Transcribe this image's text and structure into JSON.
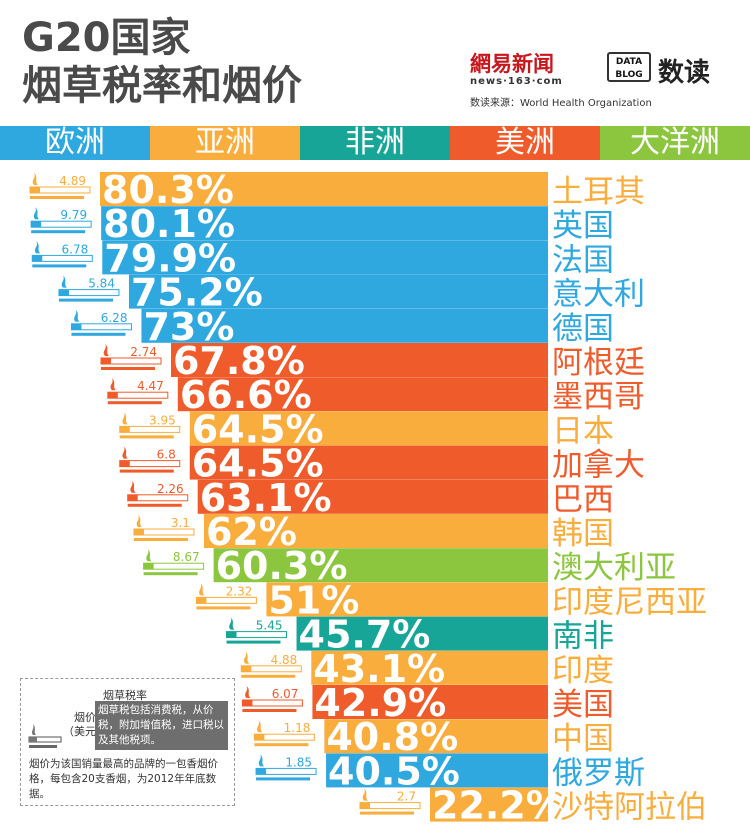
{
  "title_line1": "G20国家",
  "title_line2": "烟草税率和烟价",
  "brand": {
    "name": "網易新闻",
    "url": "news·163·com",
    "source": "数读来源：World Health Organization"
  },
  "datablog": {
    "line1": "DATA",
    "line2": "BLOG",
    "name": "数读"
  },
  "colors": {
    "europe": "#2ea8df",
    "asia": "#f9ad3c",
    "africa": "#17a597",
    "americas": "#ef5b2b",
    "oceania": "#8cc63e"
  },
  "legend": [
    {
      "label": "欧洲",
      "key": "europe"
    },
    {
      "label": "亚洲",
      "key": "asia"
    },
    {
      "label": "非洲",
      "key": "africa"
    },
    {
      "label": "美洲",
      "key": "americas"
    },
    {
      "label": "大洋洲",
      "key": "oceania"
    }
  ],
  "note": {
    "price_label_1": "烟价",
    "price_label_2": "（美元）",
    "tax_title": "烟草税率",
    "tax_desc": "烟草税包括消费税，从价税，附加增值税，进口税以及其他税项。",
    "price_desc": "烟价为该国销量最高的品牌的一包香烟价格，每包含20支香烟，为2012年年底数据。"
  },
  "chart_data": {
    "type": "bar",
    "title": "G20国家烟草税率和烟价",
    "ylabel": "烟草税率 (%)",
    "xlabel": "",
    "ylim": [
      0,
      100
    ],
    "categories": [
      "土耳其",
      "英国",
      "法国",
      "意大利",
      "德国",
      "阿根廷",
      "墨西哥",
      "日本",
      "加拿大",
      "巴西",
      "韩国",
      "澳大利亚",
      "印度尼西亚",
      "南非",
      "印度",
      "美国",
      "中国",
      "俄罗斯",
      "沙特阿拉伯"
    ],
    "series": [
      {
        "name": "烟草税率",
        "values": [
          80.3,
          80.1,
          79.9,
          75.2,
          73,
          67.8,
          66.6,
          64.5,
          64.5,
          63.1,
          62,
          60.3,
          51,
          45.7,
          43.1,
          42.9,
          40.8,
          40.5,
          22.2
        ]
      },
      {
        "name": "烟价（美元）",
        "values": [
          4.89,
          9.79,
          6.78,
          5.84,
          6.28,
          2.74,
          4.47,
          3.95,
          6.8,
          2.26,
          3.1,
          8.67,
          2.32,
          5.45,
          4.88,
          6.07,
          1.18,
          1.85,
          2.7
        ]
      }
    ],
    "tax_labels": [
      "80.3%",
      "80.1%",
      "79.9%",
      "75.2%",
      "73%",
      "67.8%",
      "66.6%",
      "64.5%",
      "64.5%",
      "63.1%",
      "62%",
      "60.3%",
      "51%",
      "45.7%",
      "43.1%",
      "42.9%",
      "40.8%",
      "40.5%",
      "22.2%"
    ],
    "price_labels": [
      "4.89",
      "9.79",
      "6.78",
      "5.84",
      "6.28",
      "2.74",
      "4.47",
      "3.95",
      "6.8",
      "2.26",
      "3.1",
      "8.67",
      "2.32",
      "5.45",
      "4.88",
      "6.07",
      "1.18",
      "1.85",
      "2.7"
    ],
    "regions": [
      "asia",
      "europe",
      "europe",
      "europe",
      "europe",
      "americas",
      "americas",
      "asia",
      "americas",
      "americas",
      "asia",
      "oceania",
      "asia",
      "africa",
      "asia",
      "americas",
      "asia",
      "europe",
      "asia"
    ]
  }
}
